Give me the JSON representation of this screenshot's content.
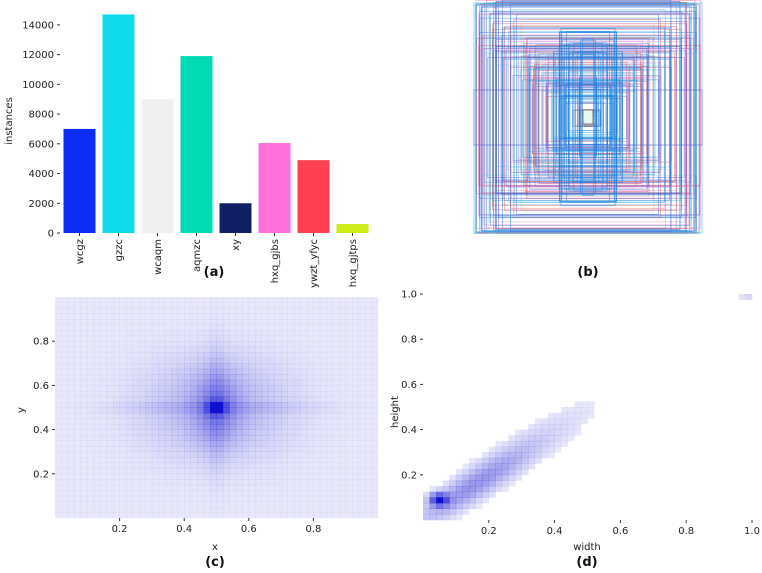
{
  "chart_data": [
    {
      "panel": "(a)",
      "type": "bar",
      "ylabel": "instances",
      "xlabel": "",
      "ylim": [
        0,
        15000
      ],
      "yticks": [
        0,
        2000,
        4000,
        6000,
        8000,
        10000,
        12000,
        14000
      ],
      "categories": [
        "wcgz",
        "gzzc",
        "wcaqm",
        "aqmzc",
        "xy",
        "hxq_gjbs",
        "ywzt_yfyc",
        "hxq_gjtps"
      ],
      "values": [
        7000,
        14700,
        9000,
        11900,
        2000,
        6050,
        4900,
        600
      ],
      "colors": [
        "#0f2cf6",
        "#0ddbec",
        "#f0f0f0",
        "#00dbb4",
        "#111f66",
        "#ff70dd",
        "#ff4050",
        "#cdec19"
      ]
    },
    {
      "panel": "(b)",
      "type": "overlay",
      "description_source": "bounding box outlines centered on image",
      "colors": [
        "#29a8e6",
        "#7dd6e8",
        "#4f5fd8",
        "#e07ad0",
        "#d94a5a",
        "#1b67d6"
      ]
    },
    {
      "panel": "(c)",
      "type": "heatmap",
      "xlabel": "x",
      "ylabel": "y",
      "xlim": [
        0,
        1
      ],
      "ylim": [
        0,
        1
      ],
      "xticks": [
        0.2,
        0.4,
        0.6,
        0.8
      ],
      "yticks": [
        0.2,
        0.4,
        0.6,
        0.8
      ],
      "peak": [
        0.5,
        0.5
      ],
      "color": "#1010d0"
    },
    {
      "panel": "(d)",
      "type": "heatmap",
      "xlabel": "width",
      "ylabel": "height",
      "xlim": [
        0,
        1
      ],
      "ylim": [
        0,
        1
      ],
      "xticks": [
        0.2,
        0.4,
        0.6,
        0.8,
        1.0
      ],
      "yticks": [
        0.2,
        0.4,
        0.6,
        0.8,
        1.0
      ],
      "peak": [
        0.05,
        0.09
      ],
      "color": "#1010d0"
    }
  ]
}
